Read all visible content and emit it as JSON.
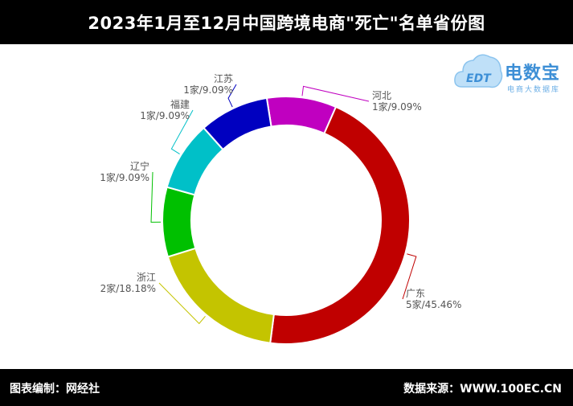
{
  "header": {
    "title": "2023年1月至12月中国跨境电商\"死亡\"名单省份图"
  },
  "footer": {
    "left": "图表编制：网经社",
    "right": "数据来源：WWW.100EC.CN"
  },
  "logo": {
    "title": "电数宝",
    "subtitle": "电商大数据库",
    "emblem_text": "EDT",
    "color": "#3d8fd6"
  },
  "chart_data": {
    "type": "pie",
    "variant": "donut",
    "start_angle_deg": 351,
    "slices": [
      {
        "name": "河北",
        "label": "1家/9.09%",
        "count": 1,
        "percent": 9.09,
        "color": "#c000c0"
      },
      {
        "name": "广东",
        "label": "5家/45.46%",
        "count": 5,
        "percent": 45.46,
        "color": "#c00000"
      },
      {
        "name": "浙江",
        "label": "2家/18.18%",
        "count": 2,
        "percent": 18.18,
        "color": "#c4c400"
      },
      {
        "name": "辽宁",
        "label": "1家/9.09%",
        "count": 1,
        "percent": 9.09,
        "color": "#00c000"
      },
      {
        "name": "福建",
        "label": "1家/9.09%",
        "count": 1,
        "percent": 9.09,
        "color": "#00c0c8"
      },
      {
        "name": "江苏",
        "label": "1家/9.09%",
        "count": 1,
        "percent": 9.09,
        "color": "#0000c0"
      }
    ]
  }
}
